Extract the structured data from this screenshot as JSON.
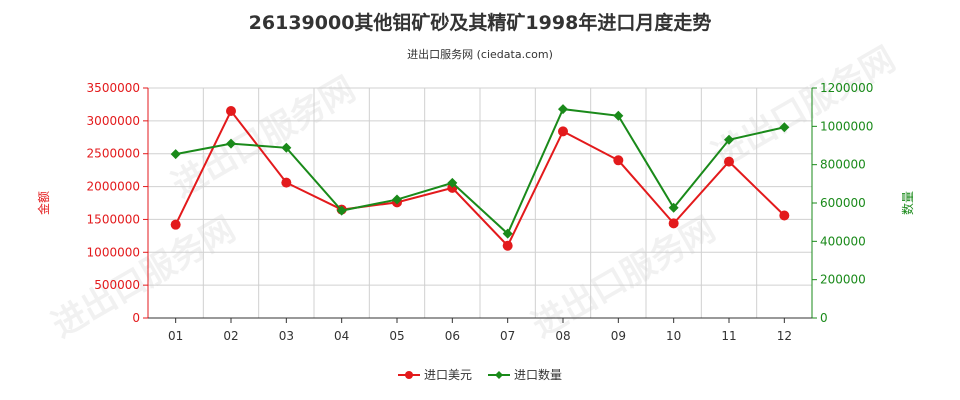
{
  "chart_data": {
    "type": "line",
    "title": "26139000其他钼矿砂及其精矿1998年进口月度走势",
    "subtitle": "进出口服务网 (ciedata.com)",
    "categories": [
      "01",
      "02",
      "03",
      "04",
      "05",
      "06",
      "07",
      "08",
      "09",
      "10",
      "11",
      "12"
    ],
    "y_left": {
      "label": "金额",
      "ylim": [
        0,
        3500000
      ],
      "ticks": [
        "0",
        "500000",
        "1000000",
        "1500000",
        "2000000",
        "2500000",
        "3000000",
        "3500000"
      ],
      "color": "#e31a1c"
    },
    "y_right": {
      "label": "数量",
      "ylim": [
        0,
        1200000
      ],
      "ticks": [
        "0",
        "200000",
        "400000",
        "600000",
        "800000",
        "1000000",
        "1200000"
      ],
      "color": "#1a8a1a"
    },
    "series": [
      {
        "name": "进口美元",
        "axis": "left",
        "color": "#e31a1c",
        "marker": "circle",
        "values": [
          1420000,
          3150000,
          2060000,
          1650000,
          1760000,
          1980000,
          1100000,
          2840000,
          2400000,
          1440000,
          2380000,
          1560000
        ]
      },
      {
        "name": "进口数量",
        "axis": "right",
        "color": "#1a8a1a",
        "marker": "diamond",
        "values": [
          855000,
          910000,
          888000,
          560000,
          618000,
          705000,
          440000,
          1090000,
          1055000,
          575000,
          930000,
          995000
        ]
      }
    ],
    "grid": true,
    "legend": "bottom-center"
  },
  "watermark_text": "进出口服务网"
}
